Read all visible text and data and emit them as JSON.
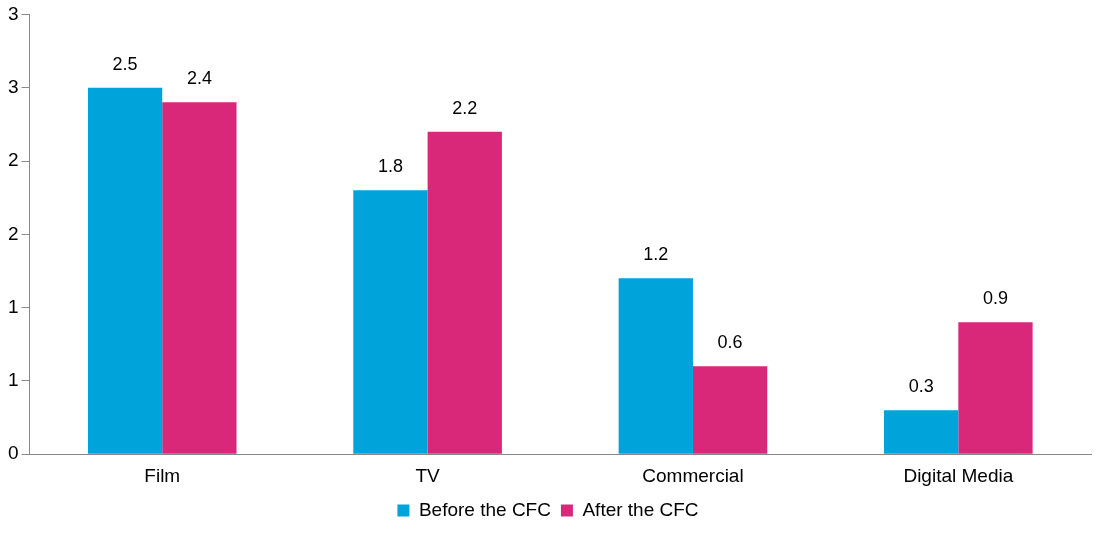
{
  "chart_data": {
    "type": "bar",
    "categories": [
      "Film",
      "TV",
      "Commercial",
      "Digital Media"
    ],
    "series": [
      {
        "name": "Before the CFC",
        "color": "#00a3da",
        "values": [
          2.5,
          1.8,
          1.2,
          0.3
        ]
      },
      {
        "name": "After the CFC",
        "color": "#d9287a",
        "values": [
          2.4,
          2.2,
          0.6,
          0.9
        ]
      }
    ],
    "ylim": [
      0,
      3
    ],
    "yticks": [
      0,
      {
        "value": 0.5,
        "label": "1"
      },
      1,
      {
        "value": 1.5,
        "label": "2"
      },
      2,
      {
        "value": 2.5,
        "label": "3"
      },
      3
    ],
    "data_labels": true,
    "legend": "bottom",
    "grid": false
  }
}
